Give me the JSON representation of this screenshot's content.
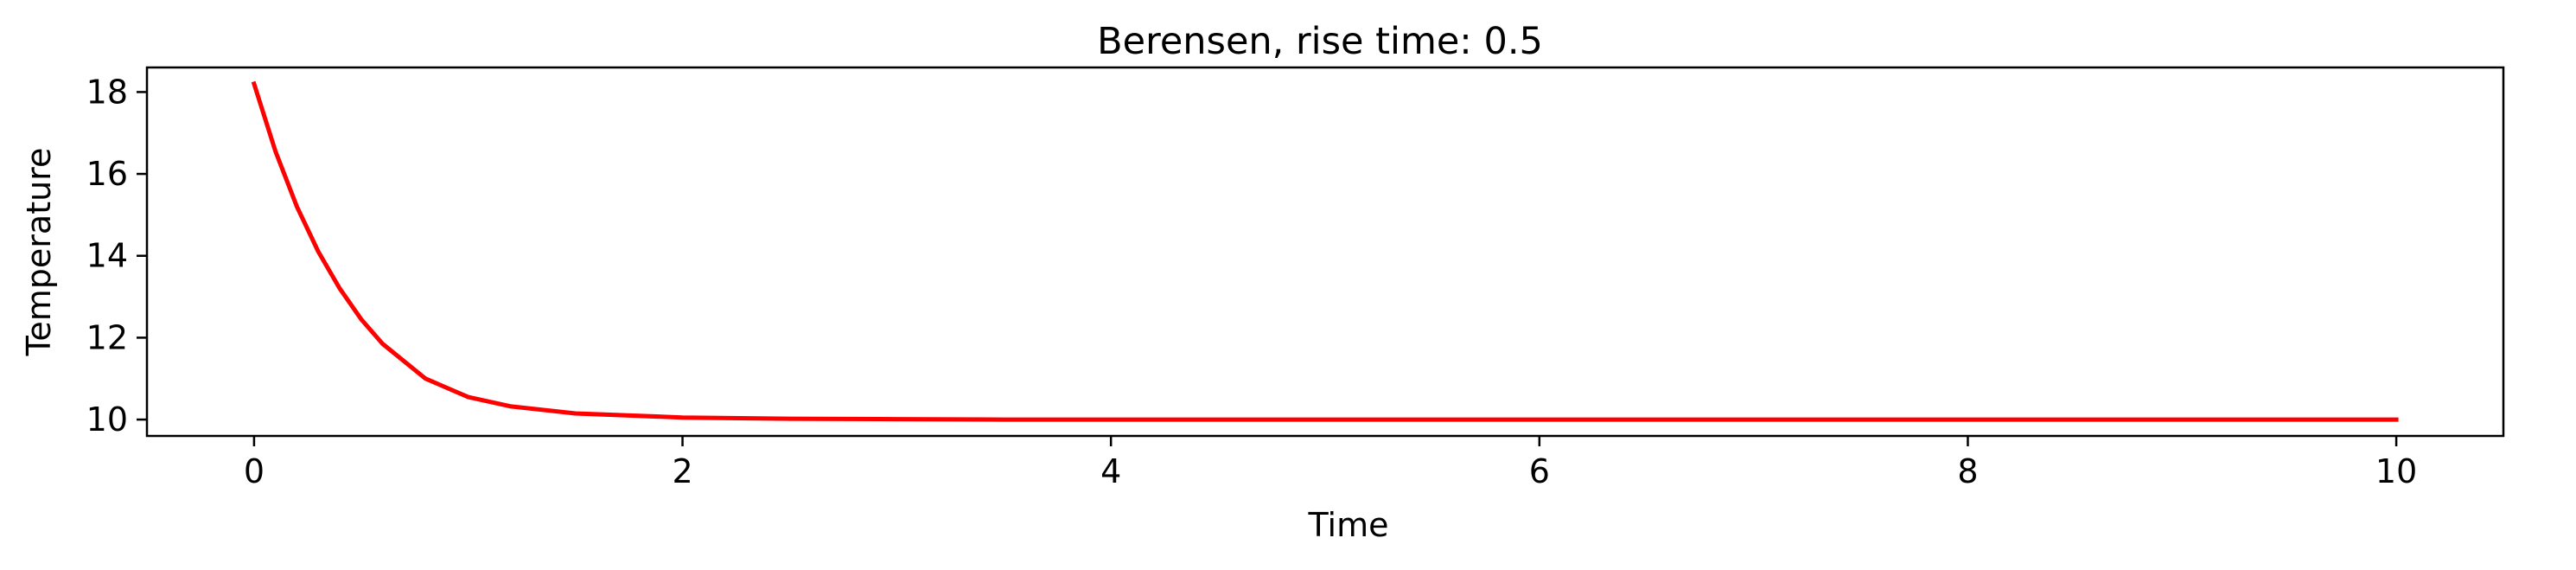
{
  "colors": {
    "line": "#ff0000",
    "axes": "#000000",
    "background": "#ffffff"
  },
  "chart_data": {
    "type": "line",
    "title": "Berensen, rise time: 0.5",
    "xlabel": "Time",
    "ylabel": "Temperature",
    "xlim": [
      -0.5,
      10.5
    ],
    "ylim": [
      9.6,
      18.6
    ],
    "xticks": [
      0,
      2,
      4,
      6,
      8,
      10
    ],
    "xtick_labels": [
      "0",
      "2",
      "4",
      "6",
      "8",
      "10"
    ],
    "yticks": [
      10,
      12,
      14,
      16,
      18
    ],
    "ytick_labels": [
      "10",
      "12",
      "14",
      "16",
      "18"
    ],
    "grid": false,
    "series": [
      {
        "color": "#ff0000",
        "x": [
          0,
          0.1,
          0.2,
          0.3,
          0.4,
          0.5,
          0.6,
          0.8,
          1.0,
          1.2,
          1.5,
          2.0,
          2.5,
          3.0,
          3.5,
          4.0,
          5.0,
          6.0,
          7.0,
          8.0,
          9.0,
          10.0
        ],
        "y": [
          18.2,
          16.55,
          15.2,
          14.1,
          13.2,
          12.45,
          11.85,
          11.0,
          10.55,
          10.32,
          10.15,
          10.05,
          10.02,
          10.01,
          10.0,
          10.0,
          10.0,
          10.0,
          10.0,
          10.0,
          10.0,
          10.0
        ]
      }
    ]
  }
}
